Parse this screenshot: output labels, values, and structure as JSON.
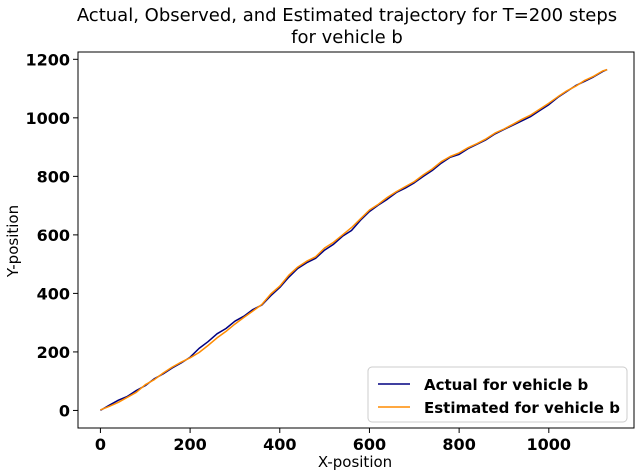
{
  "chart_data": {
    "type": "line",
    "title_line1": "Actual, Observed, and Estimated trajectory for T=200 steps",
    "title_line2": "for vehicle b",
    "xlabel": "X-position",
    "ylabel": "Y-position",
    "xlim": [
      -50,
      1190
    ],
    "ylim": [
      -60,
      1225
    ],
    "xticks": [
      0,
      200,
      400,
      600,
      800,
      1000
    ],
    "yticks": [
      0,
      200,
      400,
      600,
      800,
      1000,
      1200
    ],
    "legend_position": "lower-right",
    "series": [
      {
        "name": "Actual for vehicle b",
        "color": "#000080",
        "x": [
          0,
          20,
          40,
          60,
          80,
          100,
          120,
          140,
          160,
          180,
          200,
          220,
          240,
          260,
          280,
          300,
          320,
          340,
          360,
          380,
          400,
          420,
          440,
          460,
          480,
          500,
          520,
          540,
          560,
          580,
          600,
          620,
          640,
          660,
          680,
          700,
          720,
          740,
          760,
          780,
          800,
          820,
          840,
          860,
          880,
          900,
          920,
          940,
          960,
          980,
          1000,
          1020,
          1040,
          1060,
          1080,
          1100,
          1120,
          1130
        ],
        "y": [
          0,
          18,
          35,
          48,
          68,
          85,
          108,
          125,
          145,
          162,
          182,
          212,
          235,
          262,
          280,
          305,
          322,
          345,
          360,
          392,
          420,
          455,
          485,
          505,
          520,
          548,
          568,
          595,
          615,
          650,
          680,
          702,
          722,
          745,
          760,
          778,
          800,
          820,
          845,
          865,
          875,
          895,
          910,
          925,
          945,
          960,
          975,
          990,
          1005,
          1025,
          1045,
          1070,
          1090,
          1110,
          1125,
          1140,
          1158,
          1165
        ]
      },
      {
        "name": "Estimated for vehicle b",
        "color": "#ff8c00",
        "x": [
          0,
          20,
          40,
          60,
          80,
          100,
          120,
          140,
          160,
          180,
          200,
          220,
          240,
          260,
          280,
          300,
          320,
          340,
          360,
          380,
          400,
          420,
          440,
          460,
          480,
          500,
          520,
          540,
          560,
          580,
          600,
          620,
          640,
          660,
          680,
          700,
          720,
          740,
          760,
          780,
          800,
          820,
          840,
          860,
          880,
          900,
          920,
          940,
          960,
          980,
          1000,
          1020,
          1040,
          1060,
          1080,
          1100,
          1120,
          1130
        ],
        "y": [
          2,
          14,
          28,
          45,
          62,
          88,
          105,
          128,
          148,
          165,
          180,
          198,
          222,
          248,
          270,
          295,
          318,
          340,
          362,
          398,
          425,
          462,
          490,
          510,
          525,
          555,
          575,
          600,
          625,
          655,
          685,
          705,
          728,
          748,
          765,
          782,
          805,
          825,
          850,
          868,
          880,
          898,
          912,
          928,
          948,
          962,
          978,
          995,
          1010,
          1030,
          1050,
          1072,
          1092,
          1108,
          1128,
          1142,
          1160,
          1165
        ]
      }
    ]
  }
}
